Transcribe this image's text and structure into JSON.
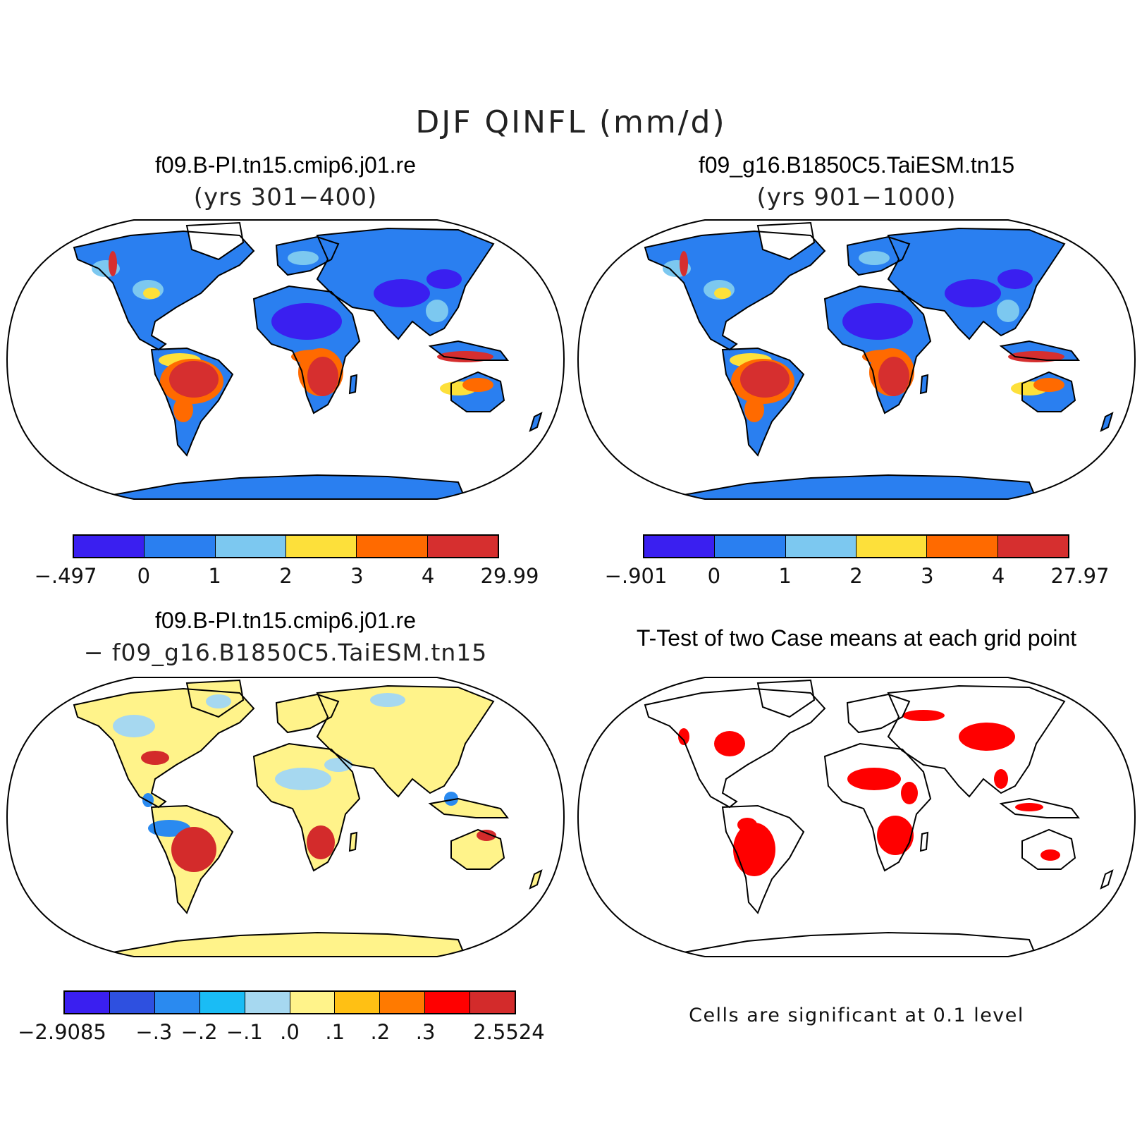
{
  "main_title": "DJF QINFL (mm/d)",
  "panels": [
    {
      "title": "f09.B-PI.tn15.cmip6.j01.re",
      "subtitle": "(yrs 301−400)"
    },
    {
      "title": "f09_g16.B1850C5.TaiESM.tn15",
      "subtitle": "(yrs 901−1000)"
    },
    {
      "title": "f09.B-PI.tn15.cmip6.j01.re",
      "subtitle": "− f09_g16.B1850C5.TaiESM.tn15"
    },
    {
      "title": "T-Test of two Case means at each grid point"
    }
  ],
  "colorbars": {
    "case1": {
      "colors": [
        "#3a1ff0",
        "#2a7ff0",
        "#7cc8f0",
        "#fde03a",
        "#ff6a00",
        "#d62f2f"
      ],
      "labels": [
        "−.497",
        "0",
        "1",
        "2",
        "3",
        "4",
        "29.99"
      ]
    },
    "case2": {
      "colors": [
        "#3a1ff0",
        "#2a7ff0",
        "#7cc8f0",
        "#fde03a",
        "#ff6a00",
        "#d62f2f"
      ],
      "labels": [
        "−.901",
        "0",
        "1",
        "2",
        "3",
        "4",
        "27.97"
      ]
    },
    "diff": {
      "colors": [
        "#3a1ff0",
        "#2e50e0",
        "#2a8af0",
        "#1abcf5",
        "#a6d8f0",
        "#fff38a",
        "#ffc014",
        "#ff7a00",
        "#ff0000",
        "#d32b2b"
      ],
      "labels": [
        "−2.9085",
        "−.3",
        "−.2",
        "−.1",
        ".0",
        ".1",
        ".2",
        ".3",
        "2.5524"
      ]
    }
  },
  "ttest_note": "Cells are significant at 0.1 level",
  "map_colors": {
    "ocean": "#ffffff",
    "case_land": "#2a7ff0",
    "case_dry": "#3a1ff0",
    "case_wet": "#d62f2f",
    "case_mid": "#ff6a00",
    "case_light": "#7cc8f0",
    "case_yellow": "#fde03a",
    "diff_land": "#fff38a",
    "diff_light": "#a6d8f0",
    "diff_pos": "#d32b2b",
    "diff_neg": "#2a8af0",
    "sig": "#ff0000"
  }
}
